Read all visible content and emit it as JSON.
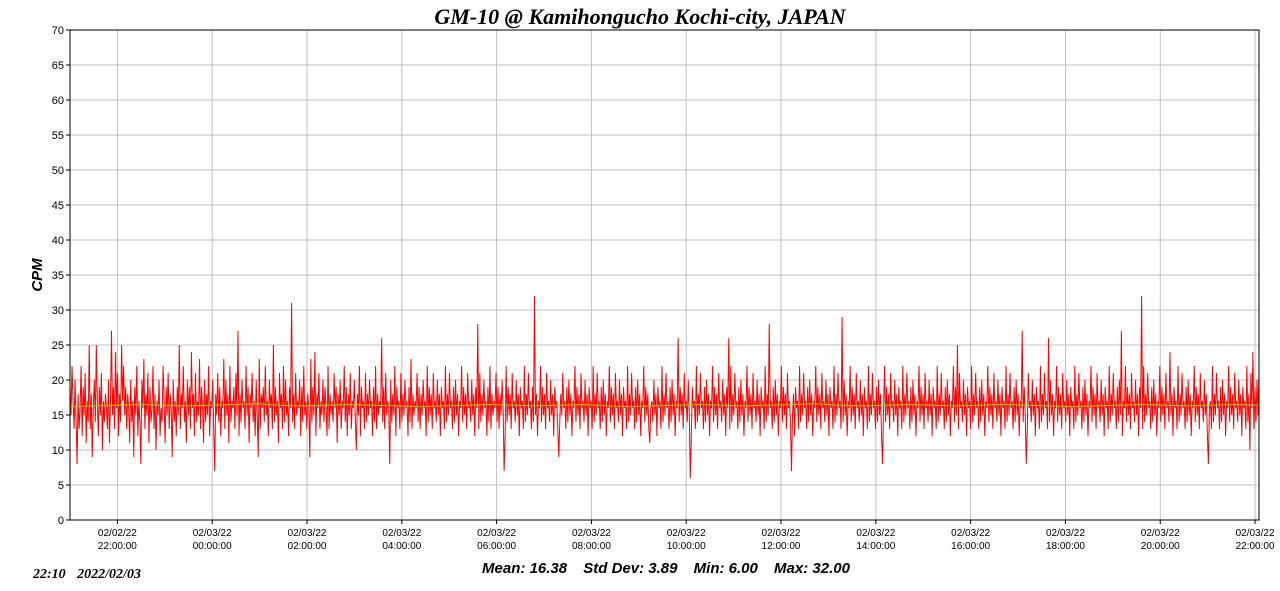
{
  "chart_data": {
    "type": "line",
    "title": "GM-10 @ Kamihongucho Kochi-city, JAPAN",
    "ylabel": "CPM",
    "ylim": [
      0,
      70
    ],
    "yticks": [
      0,
      5,
      10,
      15,
      20,
      25,
      30,
      35,
      40,
      45,
      50,
      55,
      60,
      65,
      70
    ],
    "xlim": [
      "2022-02-02T21:00",
      "2022-02-03T22:05"
    ],
    "xticks": [
      {
        "date": "02/02/22",
        "time": "22:00:00"
      },
      {
        "date": "02/03/22",
        "time": "00:00:00"
      },
      {
        "date": "02/03/22",
        "time": "02:00:00"
      },
      {
        "date": "02/03/22",
        "time": "04:00:00"
      },
      {
        "date": "02/03/22",
        "time": "06:00:00"
      },
      {
        "date": "02/03/22",
        "time": "08:00:00"
      },
      {
        "date": "02/03/22",
        "time": "10:00:00"
      },
      {
        "date": "02/03/22",
        "time": "12:00:00"
      },
      {
        "date": "02/03/22",
        "time": "14:00:00"
      },
      {
        "date": "02/03/22",
        "time": "16:00:00"
      },
      {
        "date": "02/03/22",
        "time": "18:00:00"
      },
      {
        "date": "02/03/22",
        "time": "20:00:00"
      },
      {
        "date": "02/03/22",
        "time": "22:00:00"
      }
    ],
    "grid": true,
    "series": [
      {
        "color": "#ff0000",
        "x_start": "2022-02-02T21:00",
        "x_end": "2022-02-03T22:05",
        "values": [
          19,
          15,
          22,
          17,
          13,
          20,
          14,
          8,
          18,
          13,
          16,
          22,
          12,
          19,
          15,
          21,
          11,
          17,
          14,
          25,
          13,
          18,
          9,
          16,
          20,
          14,
          25,
          17,
          12,
          19,
          15,
          21,
          10,
          17,
          14,
          18,
          16,
          13,
          20,
          11,
          17,
          27,
          15,
          19,
          13,
          24,
          16,
          21,
          12,
          18,
          14,
          25,
          17,
          22,
          15,
          19,
          13,
          18,
          16,
          11,
          20,
          14,
          17,
          9,
          19,
          15,
          22,
          12,
          17,
          14,
          8,
          20,
          16,
          23,
          13,
          18,
          15,
          21,
          11,
          19,
          14,
          16,
          22,
          13,
          18,
          10,
          17,
          15,
          20,
          12,
          16,
          14,
          22,
          17,
          11,
          19,
          15,
          21,
          13,
          18,
          16,
          9,
          20,
          14,
          17,
          12,
          19,
          15,
          25,
          13,
          18,
          16,
          22,
          14,
          17,
          11,
          20,
          15,
          19,
          13,
          24,
          16,
          18,
          12,
          21,
          14,
          17,
          15,
          23,
          13,
          19,
          16,
          11,
          20,
          14,
          18,
          15,
          22,
          12,
          17,
          16,
          20,
          13,
          7,
          18,
          15,
          21,
          14,
          19,
          12,
          17,
          16,
          23,
          13,
          20,
          15,
          18,
          11,
          22,
          14,
          17,
          16,
          19,
          13,
          21,
          15,
          27,
          12,
          18,
          14,
          20,
          16,
          17,
          13,
          22,
          15,
          19,
          11,
          18,
          16,
          21,
          14,
          17,
          12,
          20,
          15,
          9,
          23,
          13,
          18,
          16,
          19,
          14,
          22,
          15,
          17,
          12,
          20,
          16,
          18,
          13,
          25,
          14,
          19,
          15,
          17,
          11,
          21,
          16,
          18,
          13,
          22,
          14,
          20,
          15,
          17,
          12,
          19,
          16,
          31,
          14,
          18,
          13,
          21,
          15,
          17,
          16,
          20,
          12,
          19,
          14,
          22,
          15,
          17,
          13,
          18,
          16,
          9,
          23,
          14,
          19,
          15,
          24,
          12,
          18,
          16,
          21,
          13,
          17,
          15,
          20,
          14,
          19,
          16,
          12,
          22,
          13,
          18,
          15,
          17,
          14,
          21,
          16,
          19,
          11,
          18,
          15,
          20,
          13,
          17,
          16,
          22,
          14,
          19,
          12,
          18,
          15,
          21,
          13,
          17,
          16,
          20,
          14,
          10,
          18,
          15,
          22,
          12,
          19,
          16,
          17,
          13,
          21,
          14,
          18,
          15,
          20,
          16,
          17,
          12,
          19,
          14,
          22,
          13,
          18,
          15,
          17,
          16,
          26,
          14,
          19,
          13,
          21,
          15,
          17,
          16,
          8,
          20,
          14,
          18,
          15,
          22,
          12,
          19,
          16,
          17,
          13,
          21,
          14,
          18,
          15,
          20,
          16,
          17,
          12,
          19,
          14,
          23,
          13,
          18,
          15,
          17,
          16,
          21,
          14,
          19,
          13,
          18,
          15,
          20,
          16,
          17,
          12,
          22,
          14,
          19,
          15,
          18,
          13,
          21,
          16,
          17,
          14,
          20,
          15,
          18,
          12,
          19,
          16,
          17,
          13,
          22,
          14,
          18,
          15,
          21,
          16,
          17,
          13,
          19,
          14,
          20,
          15,
          18,
          12,
          17,
          16,
          22,
          14,
          19,
          15,
          18,
          13,
          21,
          16,
          17,
          14,
          20,
          15,
          18,
          12,
          19,
          16,
          28,
          13,
          21,
          14,
          18,
          15,
          20,
          16,
          17,
          12,
          19,
          14,
          22,
          13,
          18,
          15,
          17,
          16,
          21,
          14,
          19,
          13,
          18,
          15,
          20,
          16,
          7,
          12,
          22,
          14,
          19,
          15,
          18,
          13,
          21,
          16,
          17,
          14,
          20,
          15,
          18,
          12,
          19,
          16,
          17,
          13,
          22,
          14,
          18,
          15,
          21,
          16,
          17,
          13,
          19,
          14,
          32,
          15,
          18,
          12,
          17,
          16,
          22,
          14,
          19,
          15,
          18,
          13,
          21,
          16,
          17,
          14,
          20,
          15,
          18,
          12,
          19,
          16,
          17,
          13,
          9,
          14,
          18,
          15,
          21,
          16,
          17,
          13,
          19,
          14,
          20,
          15,
          18,
          12,
          17,
          16,
          22,
          14,
          19,
          15,
          18,
          13,
          21,
          16,
          17,
          14,
          20,
          15,
          18,
          12,
          19,
          16,
          17,
          13,
          22,
          14,
          18,
          15,
          21,
          16,
          17,
          13,
          19,
          14,
          20,
          15,
          18,
          12,
          17,
          16,
          22,
          14,
          19,
          15,
          18,
          13,
          21,
          16,
          17,
          14,
          20,
          15,
          18,
          12,
          19,
          16,
          17,
          13,
          22,
          14,
          18,
          15,
          21,
          16,
          17,
          13,
          19,
          14,
          20,
          15,
          18,
          12,
          17,
          16,
          22,
          14,
          19,
          15,
          18,
          13,
          11,
          16,
          17,
          14,
          20,
          15,
          18,
          12,
          19,
          16,
          17,
          13,
          22,
          14,
          18,
          15,
          21,
          16,
          17,
          13,
          19,
          14,
          20,
          15,
          18,
          12,
          17,
          16,
          26,
          14,
          19,
          15,
          18,
          13,
          21,
          16,
          17,
          14,
          20,
          15,
          6,
          12,
          19,
          16,
          17,
          13,
          22,
          14,
          18,
          15,
          21,
          16,
          17,
          13,
          19,
          14,
          20,
          15,
          18,
          12,
          17,
          16,
          22,
          14,
          19,
          15,
          18,
          13,
          21,
          16,
          17,
          14,
          20,
          15,
          18,
          12,
          19,
          16,
          26,
          13,
          22,
          14,
          18,
          15,
          21,
          16,
          17,
          13,
          19,
          14,
          20,
          15,
          18,
          12,
          17,
          16,
          22,
          14,
          19,
          15,
          18,
          13,
          21,
          16,
          17,
          14,
          20,
          15,
          18,
          12,
          19,
          16,
          17,
          13,
          22,
          14,
          18,
          15,
          28,
          16,
          17,
          13,
          19,
          14,
          20,
          15,
          18,
          12,
          17,
          16,
          22,
          14,
          19,
          15,
          18,
          13,
          21,
          16,
          17,
          14,
          7,
          15,
          18,
          12,
          19,
          16,
          17,
          13,
          22,
          14,
          18,
          15,
          21,
          16,
          17,
          13,
          19,
          14,
          20,
          15,
          18,
          12,
          17,
          16,
          22,
          14,
          19,
          15,
          18,
          13,
          21,
          16,
          17,
          14,
          20,
          15,
          18,
          12,
          19,
          16,
          17,
          13,
          22,
          14,
          18,
          15,
          21,
          16,
          17,
          13,
          29,
          14,
          20,
          15,
          18,
          12,
          17,
          16,
          22,
          14,
          19,
          15,
          18,
          13,
          21,
          16,
          17,
          14,
          20,
          15,
          18,
          12,
          19,
          16,
          17,
          13,
          22,
          14,
          18,
          15,
          21,
          16,
          17,
          13,
          19,
          14,
          20,
          15,
          18,
          12,
          8,
          16,
          22,
          14,
          19,
          15,
          18,
          13,
          21,
          16,
          17,
          14,
          20,
          15,
          18,
          12,
          19,
          16,
          17,
          13,
          22,
          14,
          18,
          15,
          21,
          16,
          17,
          13,
          19,
          14,
          20,
          15,
          18,
          12,
          17,
          16,
          22,
          14,
          19,
          15,
          18,
          13,
          21,
          16,
          17,
          14,
          20,
          15,
          18,
          12,
          19,
          16,
          17,
          13,
          22,
          14,
          18,
          15,
          21,
          16,
          17,
          13,
          19,
          14,
          20,
          15,
          18,
          12,
          17,
          16,
          22,
          14,
          19,
          15,
          25,
          13,
          21,
          16,
          17,
          14,
          20,
          15,
          18,
          12,
          19,
          16,
          17,
          13,
          22,
          14,
          18,
          15,
          21,
          16,
          17,
          13,
          19,
          14,
          20,
          15,
          18,
          12,
          17,
          16,
          22,
          14,
          19,
          15,
          18,
          13,
          21,
          16,
          17,
          14,
          20,
          15,
          18,
          12,
          19,
          16,
          17,
          13,
          22,
          14,
          18,
          15,
          21,
          16,
          17,
          13,
          19,
          14,
          20,
          15,
          18,
          12,
          17,
          16,
          27,
          14,
          19,
          15,
          8,
          13,
          21,
          16,
          17,
          14,
          20,
          15,
          18,
          12,
          19,
          16,
          17,
          13,
          22,
          14,
          18,
          15,
          21,
          16,
          17,
          13,
          26,
          14,
          20,
          15,
          18,
          12,
          17,
          16,
          22,
          14,
          19,
          15,
          18,
          13,
          21,
          16,
          17,
          14,
          20,
          15,
          18,
          12,
          19,
          16,
          17,
          13,
          22,
          14,
          18,
          15,
          21,
          16,
          17,
          13,
          19,
          14,
          20,
          15,
          18,
          12,
          17,
          16,
          22,
          14,
          19,
          15,
          18,
          13,
          21,
          16,
          17,
          14,
          20,
          15,
          18,
          12,
          19,
          16,
          17,
          13,
          22,
          14,
          18,
          15,
          21,
          16,
          17,
          13,
          19,
          14,
          20,
          15,
          27,
          12,
          17,
          16,
          22,
          14,
          19,
          15,
          18,
          13,
          21,
          16,
          17,
          14,
          20,
          15,
          18,
          12,
          19,
          16,
          32,
          13,
          22,
          14,
          18,
          15,
          21,
          16,
          17,
          13,
          19,
          14,
          20,
          15,
          18,
          12,
          17,
          16,
          22,
          14,
          19,
          15,
          18,
          13,
          21,
          16,
          17,
          14,
          24,
          15,
          18,
          12,
          19,
          16,
          17,
          13,
          22,
          14,
          18,
          15,
          21,
          16,
          17,
          13,
          19,
          14,
          20,
          15,
          18,
          12,
          17,
          16,
          22,
          14,
          19,
          15,
          18,
          13,
          21,
          16,
          17,
          14,
          20,
          15,
          18,
          12,
          8,
          16,
          17,
          13,
          22,
          14,
          18,
          15,
          21,
          16,
          17,
          13,
          19,
          14,
          20,
          15,
          18,
          12,
          17,
          16,
          22,
          14,
          19,
          15,
          18,
          13,
          21,
          16,
          17,
          14,
          20,
          15,
          18,
          12,
          19,
          16,
          17,
          13,
          22,
          14,
          18,
          10,
          21,
          16,
          24,
          13,
          19,
          14,
          20,
          15,
          21
        ]
      },
      {
        "color": "#99cc00",
        "x_start": "2022-02-02T21:00",
        "x_end": "2022-02-03T22:05",
        "values": [
          16.2,
          16.3,
          16.4,
          16.5,
          16.4,
          16.3,
          16.4,
          16.5,
          16.6,
          16.4,
          16.3,
          16.4,
          16.5,
          16.4,
          16.3,
          16.2,
          16.3,
          16.4,
          16.5,
          16.4,
          16.3,
          16.4,
          16.5,
          16.3,
          16.2,
          16.3,
          16.4,
          16.5,
          16.4,
          16.3,
          16.4,
          16.5,
          16.6,
          16.4,
          16.3,
          16.4,
          16.5,
          16.4,
          16.3,
          16.4,
          16.5,
          16.4,
          16.3,
          16.2,
          16.3,
          16.4,
          16.5,
          16.4,
          16.3,
          16.4,
          16.5,
          16.4
        ]
      }
    ],
    "stats": {
      "mean_label": "Mean:",
      "mean": "16.38",
      "std_label": "Std Dev:",
      "std": "3.89",
      "min_label": "Min:",
      "min": "6.00",
      "max_label": "Max:",
      "max": "32.00"
    },
    "timestamp": {
      "time": "22:10",
      "date": "2022/02/03"
    }
  }
}
